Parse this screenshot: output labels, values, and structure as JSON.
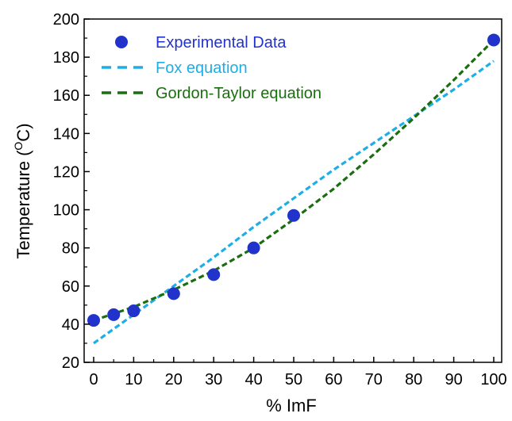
{
  "chart_data": {
    "type": "scatter",
    "title": "",
    "xlabel": "% ImF",
    "ylabel_main": "Temperature (",
    "ylabel_sup": "O",
    "ylabel_end": "C)",
    "xlim": [
      0,
      100
    ],
    "ylim": [
      20,
      200
    ],
    "x_ticks": [
      0,
      10,
      20,
      30,
      40,
      50,
      60,
      70,
      80,
      90,
      100
    ],
    "y_ticks": [
      20,
      40,
      60,
      80,
      100,
      120,
      140,
      160,
      180,
      200
    ],
    "grid": false,
    "legend_position": "top-left",
    "series": [
      {
        "name": "Experimental Data",
        "kind": "markers",
        "color": "#2233cc",
        "x": [
          0,
          5,
          10,
          20,
          30,
          40,
          50,
          100
        ],
        "y": [
          42,
          45,
          47,
          56,
          66,
          80,
          97,
          189
        ]
      },
      {
        "name": "Fox equation",
        "kind": "dashed-line",
        "color": "#1eaee6",
        "x": [
          0,
          10,
          20,
          30,
          40,
          50,
          60,
          70,
          80,
          90,
          100
        ],
        "y": [
          30,
          45,
          60,
          75,
          91,
          106,
          121,
          135,
          149,
          163,
          178
        ]
      },
      {
        "name": "Gordon-Taylor equation",
        "kind": "dashed-line",
        "color": "#1a6e10",
        "x": [
          0,
          10,
          20,
          30,
          40,
          50,
          60,
          70,
          80,
          90,
          100
        ],
        "y": [
          42,
          49,
          58,
          68,
          80,
          95,
          111,
          129,
          148,
          168,
          189
        ]
      }
    ]
  }
}
